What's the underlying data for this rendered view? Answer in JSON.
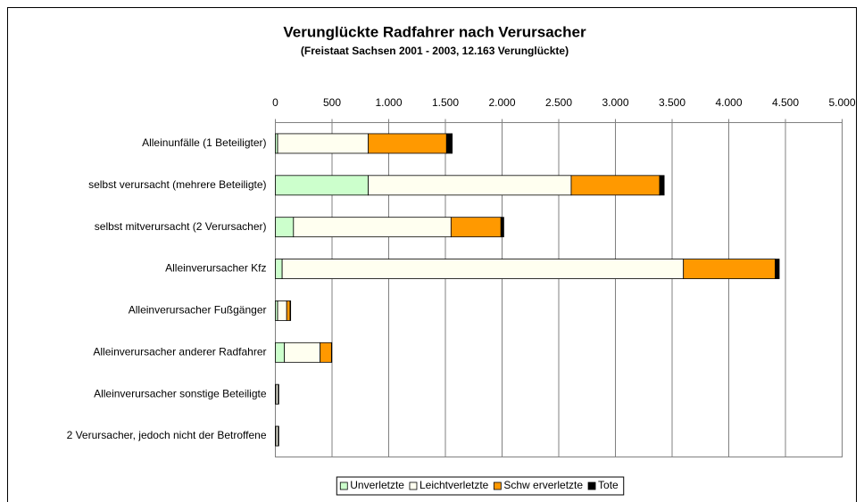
{
  "chart_data": {
    "type": "stacked_hbar",
    "title": "Verunglückte Radfahrer nach Verursacher",
    "subtitle": "(Freistaat Sachsen 2001 - 2003, 12.163 Verunglückte)",
    "categories": [
      "Alleinunfälle (1 Beteiligter)",
      "selbst verursacht (mehrere Beteiligte)",
      "selbst mitverursacht (2 Verursacher)",
      "Alleinverursacher Kfz",
      "Alleinverursacher Fußgänger",
      "Alleinverursacher anderer Radfahrer",
      "Alleinverursacher sonstige Beteiligte",
      "2 Verursacher, jedoch nicht der Betroffene"
    ],
    "series": [
      {
        "name": "Unverletzte",
        "color": "#ccffcc",
        "values": [
          20,
          820,
          160,
          60,
          20,
          80,
          5,
          5
        ]
      },
      {
        "name": "Leichtverletzte",
        "color": "#fffff0",
        "values": [
          800,
          1790,
          1390,
          3540,
          80,
          315,
          20,
          20
        ]
      },
      {
        "name": "Schw erverletzte",
        "color": "#ff9900",
        "values": [
          690,
          780,
          440,
          810,
          30,
          100,
          5,
          5
        ]
      },
      {
        "name": "Tote",
        "color": "#000000",
        "values": [
          50,
          40,
          25,
          35,
          5,
          3,
          0,
          0
        ]
      }
    ],
    "xlim": [
      0,
      5000
    ],
    "xticks": [
      0,
      500,
      {
        "value": 1000,
        "label": "1.000"
      },
      {
        "value": 1500,
        "label": "1.500"
      },
      {
        "value": 2000,
        "label": "2.000"
      },
      {
        "value": 2500,
        "label": "2.500"
      },
      {
        "value": 3000,
        "label": "3.000"
      },
      {
        "value": 3500,
        "label": "3.500"
      },
      {
        "value": 4000,
        "label": "4.000"
      },
      {
        "value": 4500,
        "label": "4.500"
      },
      {
        "value": 5000,
        "label": "5.000"
      }
    ],
    "grid": true
  }
}
